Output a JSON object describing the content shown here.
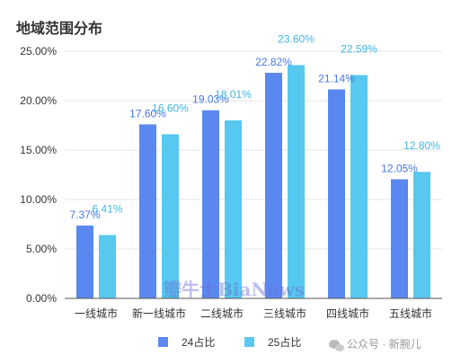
{
  "chart_data": {
    "type": "bar",
    "title": "地域范围分布",
    "categories": [
      "一线城市",
      "新一线城市",
      "二线城市",
      "三线城市",
      "四线城市",
      "五线城市"
    ],
    "series": [
      {
        "name": "24占比",
        "color": "#5b88f0",
        "label_color": "#4a76e0",
        "values": [
          7.37,
          17.6,
          19.03,
          22.82,
          21.14,
          12.05
        ]
      },
      {
        "name": "25占比",
        "color": "#57c8ef",
        "label_color": "#3fb6e6",
        "values": [
          6.41,
          16.6,
          18.01,
          23.6,
          22.59,
          12.8
        ]
      }
    ],
    "ylim": [
      0,
      25
    ],
    "yticks": [
      "0.00%",
      "5.00%",
      "10.00%",
      "15.00%",
      "20.00%",
      "25.00%"
    ],
    "grid": true,
    "legend": "bottom"
  },
  "watermark": "瓣牛士BiaNews",
  "attribution": "公众号 · 新腕儿"
}
